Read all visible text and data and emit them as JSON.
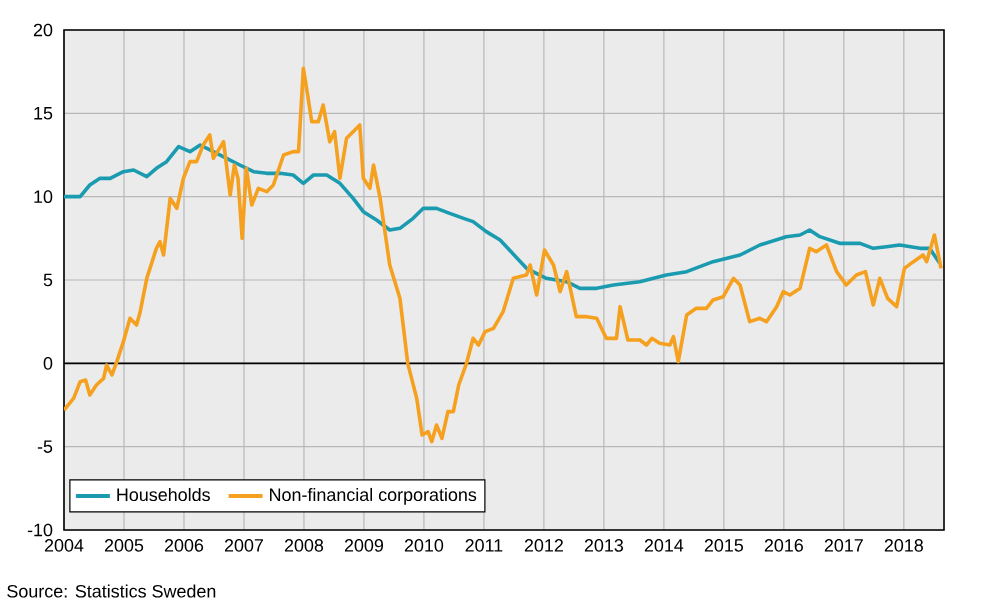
{
  "chart_data": {
    "type": "line",
    "annotations": [
      "Source:  Statistics Sweden"
    ],
    "xlim": [
      2004,
      2018.67
    ],
    "xticks": [
      2004,
      2005,
      2006,
      2007,
      2008,
      2009,
      2010,
      2011,
      2012,
      2013,
      2014,
      2015,
      2016,
      2017,
      2018
    ],
    "ylim": [
      -10,
      20
    ],
    "yticks": [
      -10,
      -5,
      0,
      5,
      10,
      15,
      20
    ],
    "grid": true,
    "legend": "bottom left",
    "marker": "none",
    "line_style": "solid",
    "ref_lines": [
      {
        "axis": "y",
        "value": 0,
        "color": "#000000"
      }
    ],
    "series": [
      {
        "name": "Households",
        "color": "#1a9bb0",
        "x": [
          2004.0,
          2004.27,
          2004.43,
          2004.6,
          2004.77,
          2004.99,
          2005.16,
          2005.38,
          2005.54,
          2005.71,
          2005.91,
          2006.1,
          2006.27,
          2006.49,
          2006.71,
          2006.93,
          2007.16,
          2007.38,
          2007.6,
          2007.82,
          2007.99,
          2008.16,
          2008.38,
          2008.6,
          2008.82,
          2008.99,
          2009.21,
          2009.43,
          2009.6,
          2009.82,
          2009.99,
          2010.21,
          2010.43,
          2010.66,
          2010.82,
          2011.04,
          2011.27,
          2011.71,
          2012.04,
          2012.38,
          2012.6,
          2012.88,
          2013.16,
          2013.6,
          2014.04,
          2014.38,
          2014.82,
          2015.27,
          2015.6,
          2016.04,
          2016.27,
          2016.43,
          2016.6,
          2016.93,
          2017.27,
          2017.49,
          2017.71,
          2017.93,
          2018.27,
          2018.43,
          2018.6
        ],
        "values": [
          10.0,
          10.0,
          10.7,
          11.1,
          11.1,
          11.5,
          11.6,
          11.2,
          11.7,
          12.1,
          13.0,
          12.7,
          13.1,
          12.7,
          12.3,
          11.9,
          11.5,
          11.4,
          11.4,
          11.3,
          10.8,
          11.3,
          11.3,
          10.8,
          9.9,
          9.1,
          8.6,
          8.0,
          8.1,
          8.7,
          9.3,
          9.3,
          9.0,
          8.7,
          8.5,
          7.9,
          7.4,
          5.7,
          5.1,
          4.9,
          4.5,
          4.5,
          4.7,
          4.9,
          5.3,
          5.5,
          6.1,
          6.5,
          7.1,
          7.6,
          7.7,
          8.0,
          7.6,
          7.2,
          7.2,
          6.9,
          7.0,
          7.1,
          6.9,
          6.9,
          6.0
        ]
      },
      {
        "name": "Non-financial corporations",
        "color": "#f5a01e",
        "x": [
          2004.0,
          2004.16,
          2004.27,
          2004.36,
          2004.43,
          2004.54,
          2004.66,
          2004.71,
          2004.8,
          2004.88,
          2004.99,
          2005.1,
          2005.21,
          2005.27,
          2005.38,
          2005.54,
          2005.6,
          2005.66,
          2005.77,
          2005.88,
          2005.99,
          2006.1,
          2006.21,
          2006.32,
          2006.43,
          2006.49,
          2006.66,
          2006.77,
          2006.84,
          2006.9,
          2006.97,
          2007.04,
          2007.13,
          2007.24,
          2007.38,
          2007.49,
          2007.66,
          2007.82,
          2007.91,
          2007.99,
          2008.07,
          2008.13,
          2008.24,
          2008.32,
          2008.43,
          2008.51,
          2008.6,
          2008.71,
          2008.82,
          2008.93,
          2008.99,
          2009.1,
          2009.16,
          2009.27,
          2009.43,
          2009.6,
          2009.73,
          2009.88,
          2009.97,
          2010.07,
          2010.13,
          2010.21,
          2010.3,
          2010.4,
          2010.49,
          2010.58,
          2010.71,
          2010.82,
          2010.91,
          2011.02,
          2011.16,
          2011.32,
          2011.49,
          2011.71,
          2011.77,
          2011.88,
          2012.01,
          2012.16,
          2012.27,
          2012.38,
          2012.54,
          2012.71,
          2012.88,
          2013.04,
          2013.21,
          2013.27,
          2013.4,
          2013.6,
          2013.71,
          2013.8,
          2013.93,
          2014.1,
          2014.16,
          2014.24,
          2014.38,
          2014.54,
          2014.71,
          2014.82,
          2014.99,
          2015.16,
          2015.27,
          2015.43,
          2015.6,
          2015.71,
          2015.88,
          2015.99,
          2016.1,
          2016.27,
          2016.43,
          2016.54,
          2016.71,
          2016.88,
          2017.04,
          2017.21,
          2017.36,
          2017.49,
          2017.6,
          2017.73,
          2017.88,
          2018.01,
          2018.16,
          2018.32,
          2018.38,
          2018.51,
          2018.62
        ],
        "values": [
          -2.8,
          -2.1,
          -1.1,
          -1.0,
          -1.9,
          -1.3,
          -0.9,
          -0.1,
          -0.7,
          0.1,
          1.3,
          2.7,
          2.3,
          3.1,
          5.1,
          6.9,
          7.3,
          6.5,
          9.9,
          9.3,
          11.1,
          12.1,
          12.1,
          13.1,
          13.7,
          12.3,
          13.3,
          10.1,
          11.9,
          11.1,
          7.5,
          11.7,
          9.5,
          10.5,
          10.3,
          10.7,
          12.5,
          12.7,
          12.7,
          17.7,
          15.9,
          14.5,
          14.5,
          15.5,
          13.3,
          13.9,
          11.1,
          13.5,
          13.9,
          14.3,
          11.1,
          10.5,
          11.9,
          9.9,
          5.9,
          3.9,
          0.0,
          -2.1,
          -4.3,
          -4.1,
          -4.7,
          -3.7,
          -4.5,
          -2.9,
          -2.9,
          -1.3,
          0.0,
          1.5,
          1.1,
          1.9,
          2.1,
          3.1,
          5.1,
          5.3,
          5.9,
          4.1,
          6.8,
          5.9,
          4.3,
          5.5,
          2.8,
          2.8,
          2.7,
          1.5,
          1.5,
          3.4,
          1.4,
          1.4,
          1.1,
          1.5,
          1.2,
          1.1,
          1.6,
          0.1,
          2.9,
          3.3,
          3.3,
          3.8,
          4.0,
          5.1,
          4.7,
          2.5,
          2.7,
          2.5,
          3.4,
          4.3,
          4.1,
          4.5,
          6.9,
          6.7,
          7.1,
          5.5,
          4.7,
          5.3,
          5.5,
          3.5,
          5.1,
          3.9,
          3.4,
          5.7,
          6.1,
          6.5,
          6.1,
          7.7,
          5.7
        ]
      }
    ]
  }
}
